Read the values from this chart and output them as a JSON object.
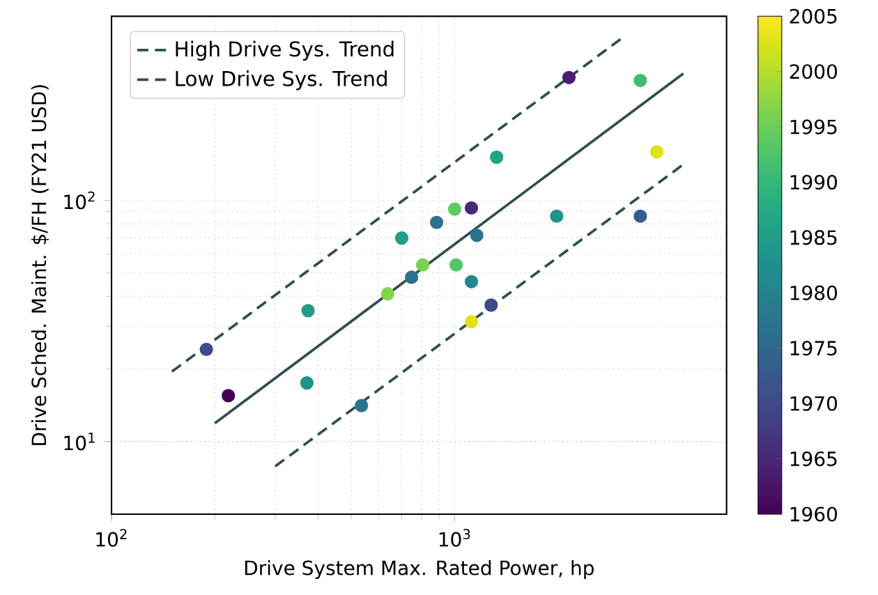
{
  "chart_data": {
    "type": "scatter",
    "xlabel": "Drive System Max. Rated Power, hp",
    "ylabel": "Drive Sched. Maint.  $/FH (FY21 USD)",
    "log": "xy",
    "xlim": [
      100,
      6200
    ],
    "ylim": [
      5,
      580
    ],
    "xticks": [
      {
        "value": 100,
        "label": "10$^{2}$"
      },
      {
        "value": 1000,
        "label": "10$^{3}$"
      }
    ],
    "yticks": [
      {
        "value": 10,
        "label": "10$^{1}$"
      },
      {
        "value": 100,
        "label": "10$^{2}$"
      }
    ],
    "clim": [
      1960,
      2005
    ],
    "cticks": [
      1960,
      1965,
      1970,
      1975,
      1980,
      1985,
      1990,
      1995,
      2000,
      2005
    ],
    "grid": true,
    "legend": "top left",
    "series": [
      {
        "marker": "circle",
        "x": [
          189,
          219,
          374,
          371,
          535,
          638,
          701,
          749,
          807,
          886,
          1000,
          1010,
          1119,
          1119,
          1119,
          1160,
          1277,
          1325,
          2153,
          1983,
          3475,
          3882,
          3475
        ],
        "values": [
          24.1,
          15.5,
          34.9,
          17.5,
          14.1,
          41,
          69.8,
          48,
          54,
          81,
          92,
          54,
          93,
          46,
          31.4,
          71.6,
          36.8,
          151,
          323,
          86,
          314,
          159,
          86
        ],
        "cvalues": [
          1970,
          1960,
          1985,
          1983,
          1977,
          1997,
          1985,
          1977,
          1996,
          1977,
          1994,
          1993,
          1965,
          1981,
          2003,
          1977,
          1970,
          1986,
          1964,
          1983,
          1991,
          2003,
          1973
        ],
        "colors": [
          "#3f4a8a",
          "#440154",
          "#229d87",
          "#21938c",
          "#2d718e",
          "#86d449",
          "#229d87",
          "#2d718e",
          "#7ad151",
          "#2d718e",
          "#5fc962",
          "#55c667",
          "#482878",
          "#24878e",
          "#dde318",
          "#2d718e",
          "#3f4a8a",
          "#21a585",
          "#482173",
          "#21938c",
          "#40bd72",
          "#dde318",
          "#375b8d"
        ]
      },
      {
        "type": "line",
        "marker": "none",
        "name": "High Drive Sys. Trend",
        "color": "#2f4f4f",
        "line_style": "dashed",
        "x": [
          150,
          3100
        ],
        "values": [
          19.5,
          475
        ]
      },
      {
        "type": "line",
        "marker": "none",
        "name": "Low Drive Sys. Trend",
        "color": "#2f4f4f",
        "line_style": "dashed",
        "x": [
          300,
          4640
        ],
        "values": [
          7.9,
          141
        ]
      },
      {
        "type": "line",
        "marker": "none",
        "color": "#2f4f4f",
        "line_style": "solid",
        "x": [
          200,
          4640
        ],
        "values": [
          11.9,
          336
        ]
      }
    ]
  }
}
